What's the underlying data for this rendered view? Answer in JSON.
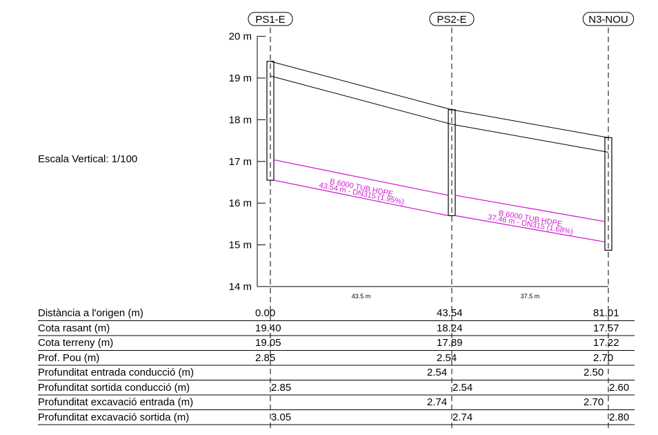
{
  "scale_label": "Escala Vertical: 1/100",
  "axis": {
    "unit": "m",
    "ylim": [
      14,
      20
    ],
    "ticks": [
      20,
      19,
      18,
      17,
      16,
      15,
      14
    ],
    "tick_labels": [
      "20 m",
      "19 m",
      "18 m",
      "17 m",
      "16 m",
      "15 m",
      "14 m"
    ]
  },
  "wells": [
    {
      "name": "PS1-E",
      "distance": 0.0,
      "ground": 19.4,
      "terrain": 19.05,
      "bottom": 16.55
    },
    {
      "name": "PS2-E",
      "distance": 43.54,
      "ground": 18.24,
      "terrain": 17.89,
      "bottom": 15.7
    },
    {
      "name": "N3-NOU",
      "distance": 81.01,
      "ground": 17.57,
      "terrain": 17.22,
      "bottom": 14.87
    }
  ],
  "pipes": [
    {
      "start_invert": 16.55,
      "end_invert": 15.7,
      "label1": "B 6000 TUB HDPE",
      "label2": "43.54 m - DN315 (1.95%)"
    },
    {
      "start_invert": 15.7,
      "end_invert": 15.07,
      "label1": "B 6000 TUB HDPE",
      "label2": "37.46 m - DN315 (1.68%)"
    }
  ],
  "segment_lengths": [
    "43.5 m",
    "37.5 m"
  ],
  "colors": {
    "pipe": "#d21fd2",
    "lines": "#000000"
  },
  "table": {
    "rows": [
      {
        "label": "Distància a l'origen (m)",
        "cells": [
          "0.00",
          "43.54",
          "81.01"
        ]
      },
      {
        "label": "Cota rasant (m)",
        "cells": [
          "19.40",
          "18.24",
          "17.57"
        ]
      },
      {
        "label": "Cota terreny (m)",
        "cells": [
          "19.05",
          "17.89",
          "17.22"
        ]
      },
      {
        "label": "Prof. Pou (m)",
        "cells": [
          "2.85",
          "2.54",
          "2.70"
        ]
      },
      {
        "label": "Profunditat entrada conducció (m)",
        "cells": [
          "",
          "2.54",
          "2.50"
        ]
      },
      {
        "label": "Profunditat sortida conducció (m)",
        "cells": [
          "2.85",
          "2.54",
          "2.60"
        ]
      },
      {
        "label": "Profunditat excavació entrada (m)",
        "cells": [
          "",
          "2.74",
          "2.70"
        ]
      },
      {
        "label": "Profunditat excavació sortida (m)",
        "cells": [
          "3.05",
          "2.74",
          "2.80"
        ]
      }
    ]
  }
}
